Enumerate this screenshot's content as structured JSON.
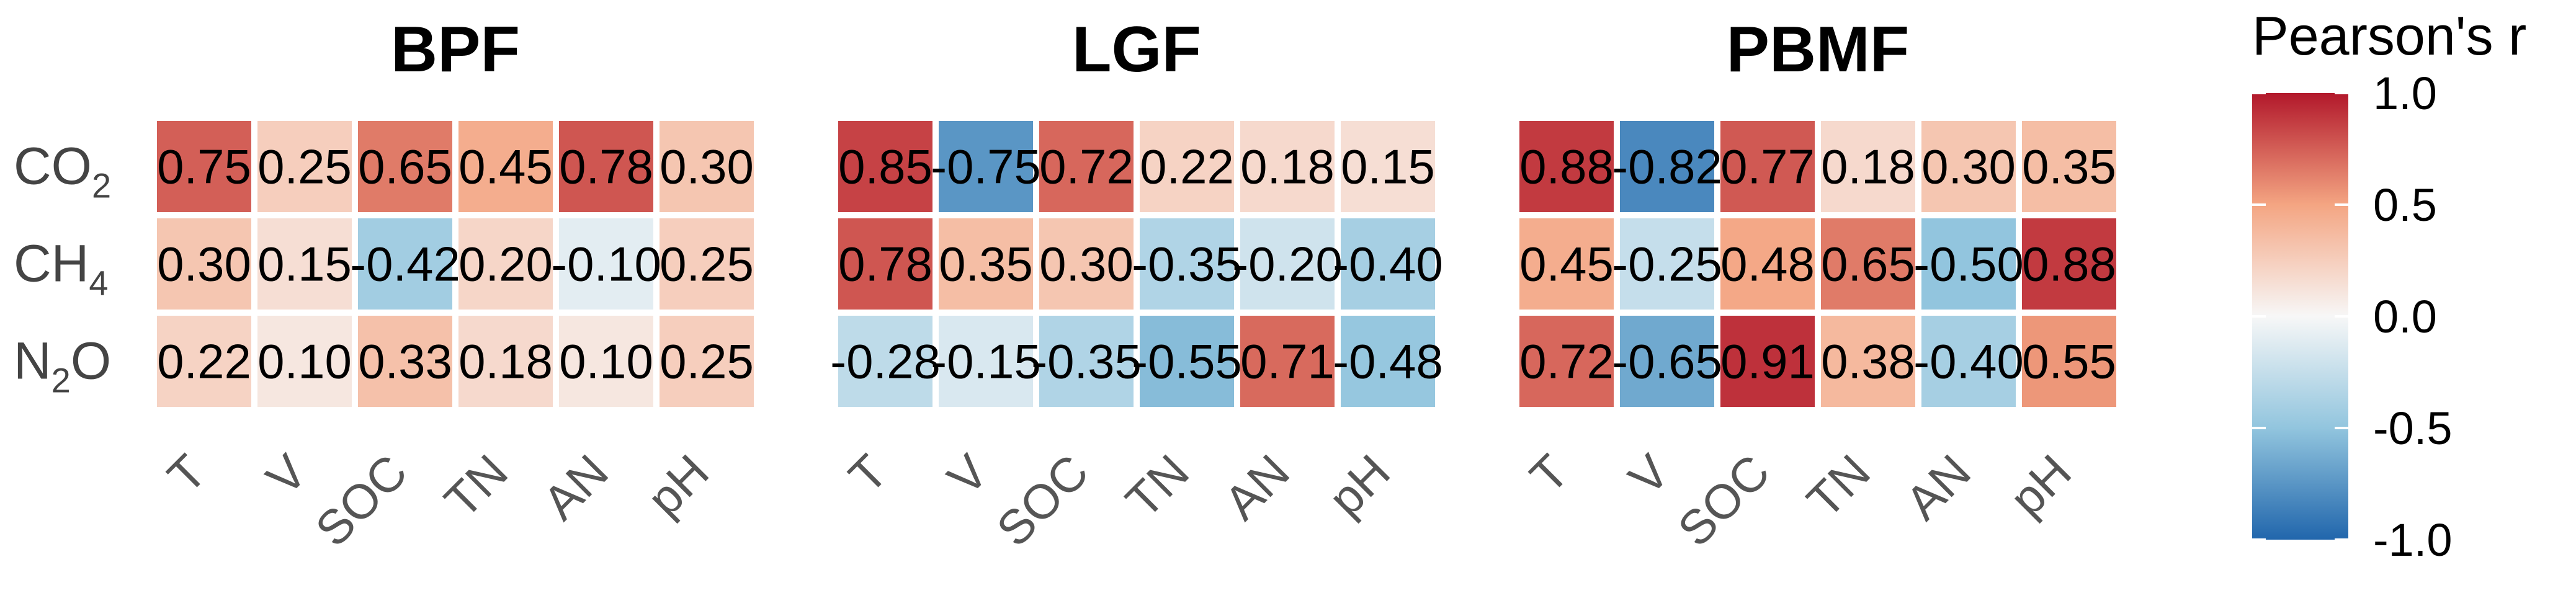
{
  "chart_data": {
    "type": "heatmap",
    "legend_title": "Pearson's r",
    "legend_ticks": [
      "1.0",
      "0.5",
      "0.0",
      "-0.5",
      "-1.0"
    ],
    "color_scale": {
      "low": "#2166ac",
      "mid": "#f7f7f7",
      "high": "#b2182b",
      "min": -1.0,
      "max": 1.0
    },
    "rows": [
      {
        "main": "CO",
        "sub": "2"
      },
      {
        "main": "CH",
        "sub": "4"
      },
      {
        "main": "N",
        "sub": "2",
        "post": "O"
      }
    ],
    "columns": [
      "T",
      "V",
      "SOC",
      "TN",
      "AN",
      "pH"
    ],
    "panels": [
      {
        "title": "BPF",
        "values": [
          [
            0.75,
            0.25,
            0.65,
            0.45,
            0.78,
            0.3
          ],
          [
            0.3,
            0.15,
            -0.42,
            0.2,
            -0.1,
            0.25
          ],
          [
            0.22,
            0.1,
            0.33,
            0.18,
            0.1,
            0.25
          ]
        ],
        "labels": [
          [
            "0.75",
            "0.25",
            "0.65",
            "0.45",
            "0.78",
            "0.30"
          ],
          [
            "0.30",
            "0.15",
            "-0.42",
            "0.20",
            "-0.10",
            "0.25"
          ],
          [
            "0.22",
            "0.10",
            "0.33",
            "0.18",
            "0.10",
            "0.25"
          ]
        ]
      },
      {
        "title": "LGF",
        "values": [
          [
            0.85,
            -0.75,
            0.72,
            0.22,
            0.18,
            0.15
          ],
          [
            0.78,
            0.35,
            0.3,
            -0.35,
            -0.2,
            -0.4
          ],
          [
            -0.28,
            -0.15,
            -0.35,
            -0.55,
            0.71,
            -0.48
          ]
        ],
        "labels": [
          [
            "0.85",
            "-0.75",
            "0.72",
            "0.22",
            "0.18",
            "0.15"
          ],
          [
            "0.78",
            "0.35",
            "0.30",
            "-0.35",
            "-0.20",
            "-0.40"
          ],
          [
            "-0.28",
            "-0.15",
            "-0.35",
            "-0.55",
            "0.71",
            "-0.48"
          ]
        ]
      },
      {
        "title": "PBMF",
        "values": [
          [
            0.88,
            -0.82,
            0.77,
            0.18,
            0.3,
            0.35
          ],
          [
            0.45,
            -0.25,
            0.48,
            0.65,
            -0.5,
            0.88
          ],
          [
            0.72,
            -0.65,
            0.91,
            0.38,
            -0.4,
            0.55
          ]
        ],
        "labels": [
          [
            "0.88",
            "-0.82",
            "0.77",
            "0.18",
            "0.30",
            "0.35"
          ],
          [
            "0.45",
            "-0.25",
            "0.48",
            "0.65",
            "-0.50",
            "0.88"
          ],
          [
            "0.72",
            "-0.65",
            "0.91",
            "0.38",
            "-0.40",
            "0.55"
          ]
        ]
      }
    ]
  }
}
